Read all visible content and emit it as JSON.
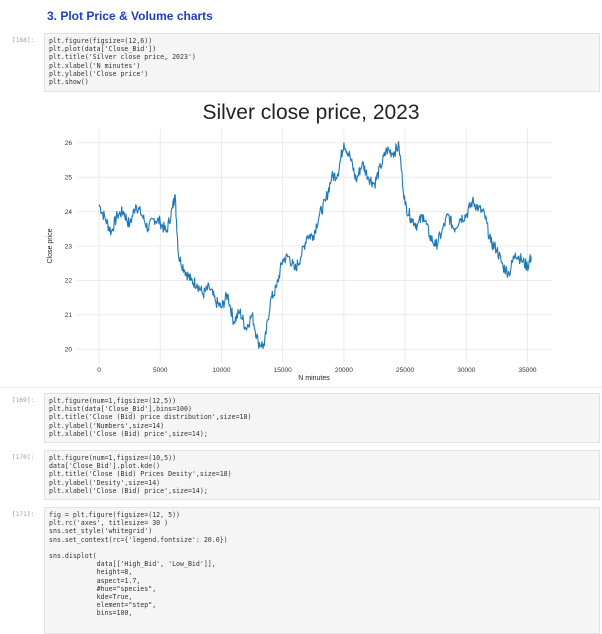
{
  "heading": "3. Plot Price & Volume charts",
  "cells": [
    {
      "prompt": "[168]:",
      "lines": [
        "plt.figure(figsize=(12,6))",
        "plt.plot(data['Close_Bid'])",
        "plt.title('Silver close price, 2023')",
        "plt.xlabel('N minutes')",
        "plt.ylabel('Close price')",
        "plt.show()"
      ]
    },
    {
      "prompt": "[169]:",
      "lines": [
        "plt.figure(num=1,figsize=(12,5))",
        "plt.hist(data['Close_Bid'],bins=100)",
        "plt.title('Close (Bid) price distribution',size=18)",
        "plt.ylabel('Numbers',size=14)",
        "plt.xlabel('Close (Bid) price',size=14);"
      ]
    },
    {
      "prompt": "[170]:",
      "lines": [
        "plt.figure(num=1,figsize=(10,5))",
        "data['Close_Bid'].plot.kde()",
        "plt.title('Close (Bid) Prices Desity',size=18)",
        "plt.ylabel('Desity',size=14)",
        "plt.xlabel('Close (Bid) price',size=14);"
      ]
    },
    {
      "prompt": "[171]:",
      "lines": [
        "fig = plt.figure(figsize=(12, 5))",
        "plt.rc('axes', titlesize= 30 )",
        "sns.set_style('whitegrid')",
        "sns.set_context(rc={'legend.fontsize': 20.0})",
        "",
        "sns.displot(",
        "            data[['High_Bid', 'Low_Bid']],",
        "            height=8,",
        "            aspect=1.7,",
        "            #hue=\"species\",",
        "            kde=True,",
        "            element=\"step\",",
        "            bins=100,"
      ]
    }
  ],
  "chart_data": {
    "type": "line",
    "title": "Silver close price, 2023",
    "xlabel": "N minutes",
    "ylabel": "Close price",
    "xlim": [
      -1800,
      37000
    ],
    "ylim": [
      19.6,
      26.4
    ],
    "xticks": [
      0,
      5000,
      10000,
      15000,
      20000,
      25000,
      30000,
      35000
    ],
    "yticks": [
      20,
      21,
      22,
      23,
      24,
      25,
      26
    ],
    "grid": true,
    "color": "#1f77b4",
    "x": [
      0,
      500,
      1000,
      1500,
      2000,
      2500,
      3000,
      3500,
      4000,
      4500,
      5000,
      5500,
      6000,
      6200,
      6500,
      7000,
      7500,
      8000,
      8500,
      9000,
      9500,
      10000,
      10500,
      11000,
      11500,
      12000,
      12500,
      13000,
      13500,
      14000,
      14500,
      15000,
      15500,
      16000,
      16500,
      17000,
      17500,
      18000,
      18500,
      19000,
      19500,
      20000,
      20500,
      21000,
      21500,
      22000,
      22500,
      23000,
      23500,
      24000,
      24500,
      25000,
      25500,
      26000,
      26500,
      27000,
      27500,
      28000,
      28500,
      29000,
      29500,
      30000,
      30500,
      31000,
      31500,
      32000,
      32500,
      33000,
      33500,
      34000,
      34500,
      35000,
      35300
    ],
    "y": [
      24.2,
      23.8,
      23.4,
      23.9,
      24.0,
      23.6,
      24.2,
      23.9,
      23.5,
      23.8,
      23.7,
      23.4,
      24.1,
      24.5,
      22.7,
      22.3,
      22.0,
      21.9,
      21.6,
      21.8,
      21.4,
      21.2,
      21.6,
      20.8,
      21.1,
      20.6,
      21.0,
      20.2,
      20.1,
      21.4,
      21.8,
      22.6,
      22.7,
      22.3,
      22.7,
      23.3,
      23.3,
      23.9,
      24.3,
      25.0,
      25.1,
      26.0,
      25.6,
      24.9,
      25.4,
      25.0,
      24.8,
      25.3,
      25.8,
      25.7,
      25.9,
      24.2,
      23.8,
      23.6,
      23.9,
      23.3,
      23.0,
      23.4,
      23.9,
      23.5,
      23.8,
      23.9,
      24.3,
      24.1,
      23.9,
      23.1,
      22.9,
      22.4,
      22.2,
      22.8,
      22.6,
      22.4,
      22.7
    ]
  }
}
